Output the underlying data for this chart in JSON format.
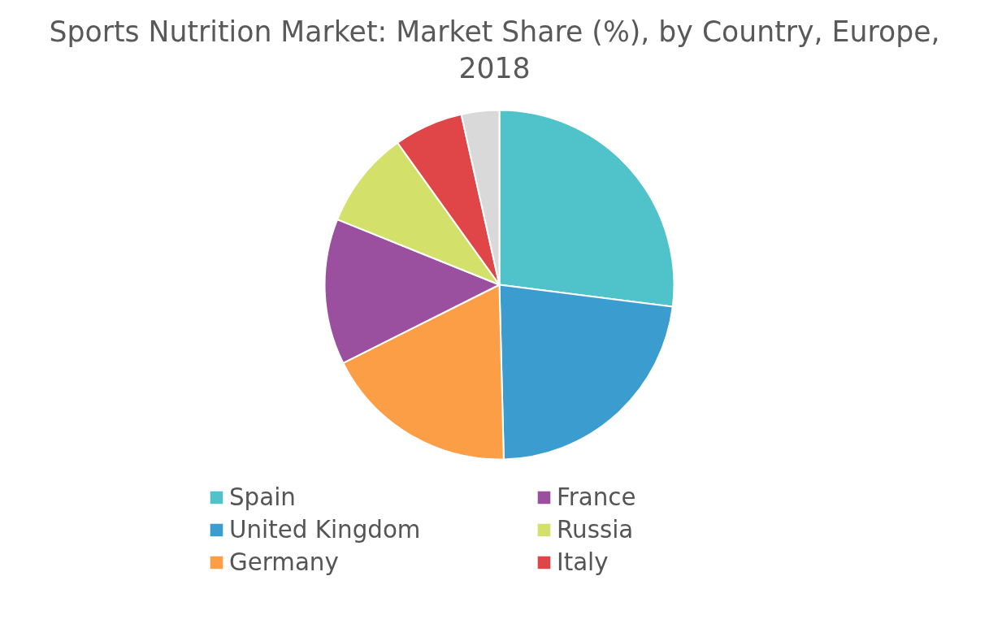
{
  "chart_data": {
    "type": "pie",
    "title": "Sports Nutrition Market: Market Share (%), by Country, Europe, 2018",
    "categories": [
      "Spain",
      "United Kingdom",
      "Germany",
      "France",
      "Russia",
      "Italy",
      null
    ],
    "values": [
      27.0,
      22.6,
      18.0,
      13.5,
      9.0,
      6.4,
      3.5
    ],
    "colors": [
      "#4fc3c9",
      "#3b9ccf",
      "#fb9e46",
      "#9b4f9f",
      "#d3e16b",
      "#e04548",
      "#d9d9d9"
    ],
    "legend": "bottom"
  }
}
